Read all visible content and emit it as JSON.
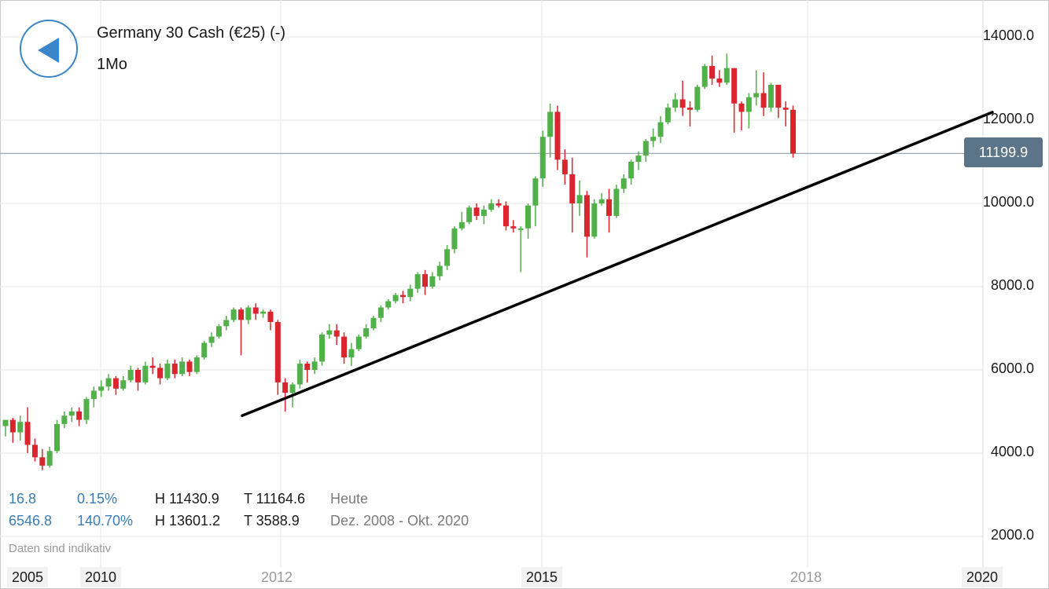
{
  "header": {
    "title": "Germany 30 Cash (€25) (-)",
    "period": "1Mo",
    "back_icon": "back-arrow-icon"
  },
  "stats": {
    "today": {
      "change": "16.8",
      "pct": "0.15%",
      "high": "H 11430.9",
      "low": "T 11164.6",
      "label": "Heute"
    },
    "range": {
      "change": "6546.8",
      "pct": "140.70%",
      "high": "H 13601.2",
      "low": "T 3588.9",
      "label": "Dez. 2008 - Okt. 2020"
    }
  },
  "disclaimer": "Daten sind indikativ",
  "current_price_label": "11199.9",
  "colors": {
    "up": "#52b04a",
    "down": "#d9262e",
    "accent": "#3a86c8",
    "badge": "#5c7488"
  },
  "chart_data": {
    "type": "candlestick",
    "y_tick_labels": [
      "14000.0",
      "12000.0",
      "10000.0",
      "8000.0",
      "6000.0",
      "4000.0",
      "2000.0"
    ],
    "y_ticks": [
      14000,
      12000,
      10000,
      8000,
      6000,
      4000,
      2000
    ],
    "x_tick_labels": [
      {
        "label": "2005",
        "style": "bold"
      },
      {
        "label": "2010",
        "style": "bold"
      },
      {
        "label": "2012",
        "style": "dim"
      },
      {
        "label": "2015",
        "style": "bold"
      },
      {
        "label": "2018",
        "style": "dim"
      },
      {
        "label": "2020",
        "style": "bold"
      }
    ],
    "current_price": 11199.9,
    "trendline": {
      "start": [
        0,
        4900
      ],
      "end": [
        86,
        12190
      ]
    },
    "candles": [
      [
        4650,
        4800,
        4400,
        4800
      ],
      [
        4800,
        4500,
        4250,
        4850
      ],
      [
        4500,
        4750,
        4300,
        4900
      ],
      [
        4750,
        4200,
        4000,
        5100
      ],
      [
        4200,
        3900,
        3800,
        4350
      ],
      [
        3900,
        3700,
        3590,
        4100
      ],
      [
        3700,
        4050,
        3650,
        4150
      ],
      [
        4050,
        4700,
        4000,
        4800
      ],
      [
        4700,
        4900,
        4600,
        5000
      ],
      [
        4900,
        5000,
        4750,
        5100
      ],
      [
        5000,
        4800,
        4650,
        5100
      ],
      [
        4800,
        5300,
        4700,
        5350
      ],
      [
        5300,
        5500,
        5100,
        5600
      ],
      [
        5500,
        5600,
        5350,
        5750
      ],
      [
        5600,
        5800,
        5500,
        5900
      ],
      [
        5800,
        5550,
        5400,
        5850
      ],
      [
        5550,
        5750,
        5500,
        5850
      ],
      [
        5750,
        6000,
        5700,
        6100
      ],
      [
        6000,
        5700,
        5500,
        6050
      ],
      [
        5700,
        6100,
        5650,
        6200
      ],
      [
        6100,
        6050,
        5900,
        6300
      ],
      [
        6050,
        5800,
        5650,
        6150
      ],
      [
        5800,
        6150,
        5750,
        6250
      ],
      [
        6150,
        5900,
        5800,
        6250
      ],
      [
        5900,
        6200,
        5850,
        6300
      ],
      [
        6200,
        5950,
        5850,
        6250
      ],
      [
        5950,
        6300,
        5900,
        6350
      ],
      [
        6300,
        6650,
        6250,
        6700
      ],
      [
        6650,
        6800,
        6550,
        6900
      ],
      [
        6800,
        7050,
        6750,
        7100
      ],
      [
        7050,
        7200,
        6950,
        7300
      ],
      [
        7200,
        7450,
        7150,
        7500
      ],
      [
        7450,
        7200,
        6350,
        7500
      ],
      [
        7200,
        7500,
        7100,
        7550
      ],
      [
        7500,
        7350,
        7200,
        7600
      ],
      [
        7350,
        7400,
        7250,
        7450
      ],
      [
        7400,
        7150,
        6950,
        7450
      ],
      [
        7150,
        5700,
        5400,
        7200
      ],
      [
        5700,
        5450,
        5000,
        5800
      ],
      [
        5450,
        5650,
        5100,
        5700
      ],
      [
        5650,
        6150,
        5550,
        6250
      ],
      [
        6150,
        6000,
        5700,
        6200
      ],
      [
        6000,
        6200,
        5900,
        6300
      ],
      [
        6200,
        6850,
        6100,
        6900
      ],
      [
        6850,
        6950,
        6750,
        7100
      ],
      [
        6950,
        6800,
        6600,
        7100
      ],
      [
        6800,
        6300,
        6150,
        6900
      ],
      [
        6300,
        6500,
        6100,
        6650
      ],
      [
        6500,
        6800,
        6450,
        6850
      ],
      [
        6800,
        7000,
        6750,
        7100
      ],
      [
        7000,
        7250,
        6950,
        7300
      ],
      [
        7250,
        7500,
        7150,
        7550
      ],
      [
        7500,
        7650,
        7450,
        7700
      ],
      [
        7650,
        7800,
        7600,
        7850
      ],
      [
        7800,
        7750,
        7600,
        7900
      ],
      [
        7750,
        7950,
        7650,
        8050
      ],
      [
        7950,
        8300,
        7850,
        8350
      ],
      [
        8300,
        8000,
        7800,
        8400
      ],
      [
        8000,
        8250,
        7950,
        8350
      ],
      [
        8250,
        8500,
        8150,
        8600
      ],
      [
        8500,
        8900,
        8400,
        9000
      ],
      [
        8900,
        9400,
        8800,
        9450
      ],
      [
        9400,
        9550,
        9350,
        9800
      ],
      [
        9550,
        9900,
        9500,
        9950
      ],
      [
        9900,
        9700,
        9600,
        10000
      ],
      [
        9700,
        9850,
        9500,
        9950
      ],
      [
        9850,
        10000,
        9800,
        10100
      ],
      [
        10000,
        9950,
        9900,
        10100
      ],
      [
        9950,
        9450,
        9350,
        10050
      ],
      [
        9450,
        9400,
        9300,
        9600
      ],
      [
        9400,
        9400,
        8350,
        9450
      ],
      [
        9400,
        9950,
        9150,
        10000
      ],
      [
        9950,
        10600,
        9450,
        10650
      ],
      [
        10600,
        11600,
        10400,
        11750
      ],
      [
        11600,
        12200,
        11100,
        12400
      ],
      [
        12200,
        11050,
        10800,
        12350
      ],
      [
        11050,
        10700,
        10450,
        11300
      ],
      [
        10700,
        10000,
        9300,
        11100
      ],
      [
        10000,
        10200,
        9700,
        10550
      ],
      [
        10200,
        9200,
        8700,
        10300
      ],
      [
        9200,
        10000,
        9150,
        10100
      ],
      [
        10000,
        10100,
        9950,
        10250
      ],
      [
        10100,
        9700,
        9300,
        10350
      ],
      [
        9700,
        10350,
        9650,
        10450
      ],
      [
        10350,
        10600,
        10250,
        10700
      ],
      [
        10600,
        11000,
        10450,
        11050
      ],
      [
        11000,
        11150,
        10800,
        11250
      ],
      [
        11150,
        11500,
        11000,
        11550
      ],
      [
        11500,
        11600,
        11350,
        11800
      ],
      [
        11600,
        11950,
        11450,
        12100
      ],
      [
        11950,
        12300,
        11900,
        12400
      ],
      [
        12300,
        12500,
        12200,
        12650
      ],
      [
        12500,
        12300,
        12100,
        12950
      ],
      [
        12300,
        12250,
        11850,
        12450
      ],
      [
        12250,
        12800,
        12200,
        12850
      ],
      [
        12800,
        13300,
        12750,
        13350
      ],
      [
        13300,
        13000,
        12850,
        13550
      ],
      [
        13000,
        12900,
        12800,
        13200
      ],
      [
        12900,
        13250,
        12850,
        13600
      ],
      [
        13250,
        12400,
        11700,
        13250
      ],
      [
        12400,
        12200,
        11750,
        12450
      ],
      [
        12200,
        12550,
        11800,
        12650
      ],
      [
        12550,
        12650,
        12350,
        13200
      ],
      [
        12650,
        12300,
        12100,
        13150
      ],
      [
        12300,
        12850,
        12200,
        12900
      ],
      [
        12850,
        12300,
        12050,
        12850
      ],
      [
        12300,
        12250,
        11850,
        12450
      ],
      [
        12250,
        11200,
        11100,
        12350
      ]
    ]
  }
}
